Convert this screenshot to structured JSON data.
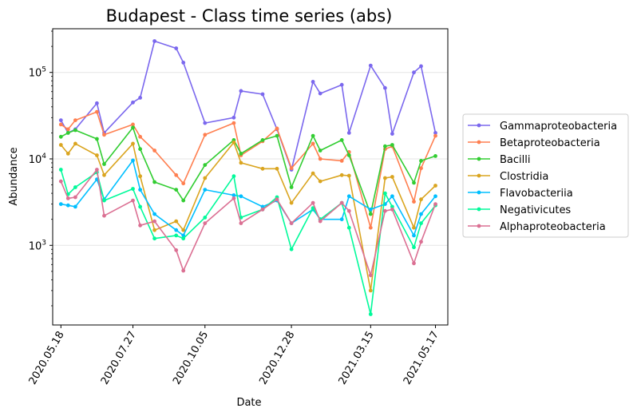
{
  "chart_data": {
    "type": "line",
    "title": "Budapest - Class time series (abs)",
    "xlabel": "Date",
    "ylabel": "Abundance",
    "y_scale": "log",
    "ylim": [
      120,
      320000
    ],
    "xlim": [
      "2020-05-10",
      "2021-05-29"
    ],
    "grid": "horizontal",
    "legend_position": "right",
    "x_ticks": [
      "2020.05.18",
      "2020.07.27",
      "2020.10.05",
      "2020.12.28",
      "2021.03.15",
      "2021.05.17"
    ],
    "y_ticks": [
      {
        "value": 1000,
        "base": "10",
        "exp": "3"
      },
      {
        "value": 10000,
        "base": "10",
        "exp": "4"
      },
      {
        "value": 100000,
        "base": "10",
        "exp": "5"
      }
    ],
    "x": [
      "2020-05-18",
      "2020-05-25",
      "2020-06-01",
      "2020-06-22",
      "2020-06-29",
      "2020-07-27",
      "2020-08-03",
      "2020-08-17",
      "2020-09-07",
      "2020-09-14",
      "2020-10-05",
      "2020-11-02",
      "2020-11-09",
      "2020-11-30",
      "2020-12-14",
      "2020-12-28",
      "2021-01-18",
      "2021-01-25",
      "2021-02-15",
      "2021-02-22",
      "2021-03-15",
      "2021-03-29",
      "2021-04-05",
      "2021-04-26",
      "2021-05-03",
      "2021-05-17"
    ],
    "series": [
      {
        "name": "Gammaproteobacteria",
        "color": "#7b68ee",
        "values": [
          28000,
          20000,
          22000,
          44000,
          20000,
          45000,
          51000,
          230000,
          190000,
          130000,
          26000,
          30000,
          61000,
          56000,
          22000,
          7500,
          78000,
          57000,
          72000,
          20000,
          120000,
          66000,
          19500,
          100000,
          118000,
          20000
        ]
      },
      {
        "name": "Betaproteobacteria",
        "color": "#ff7f50",
        "values": [
          25000,
          22000,
          28000,
          35000,
          19000,
          25000,
          18000,
          12500,
          6500,
          5200,
          19000,
          26000,
          11000,
          16000,
          22500,
          7800,
          15000,
          10000,
          9500,
          12000,
          1600,
          13000,
          14000,
          3200,
          7800,
          18500
        ]
      },
      {
        "name": "Bacilli",
        "color": "#32cd32",
        "values": [
          18000,
          20000,
          21500,
          17000,
          8700,
          23000,
          13000,
          5400,
          4400,
          3300,
          8500,
          16500,
          11500,
          16500,
          18500,
          4700,
          18500,
          12500,
          16500,
          11000,
          2300,
          14000,
          14500,
          5300,
          9500,
          10800
        ]
      },
      {
        "name": "Clostridia",
        "color": "#daa520",
        "values": [
          14500,
          11500,
          15000,
          11000,
          6500,
          15000,
          6300,
          1500,
          1900,
          1500,
          6000,
          15500,
          9000,
          7700,
          7700,
          3100,
          6800,
          5500,
          6500,
          6400,
          300,
          6000,
          6200,
          1600,
          3400,
          4900
        ]
      },
      {
        "name": "Flavobacteriia",
        "color": "#00bfff",
        "values": [
          3000,
          2900,
          2800,
          5800,
          3400,
          9600,
          4400,
          2300,
          1500,
          1300,
          4400,
          3800,
          3700,
          2800,
          3300,
          1800,
          2600,
          2000,
          2000,
          3700,
          2600,
          3000,
          3700,
          1300,
          2300,
          3700
        ]
      },
      {
        "name": "Negativicutes",
        "color": "#00fa9a",
        "values": [
          7500,
          3900,
          4700,
          7000,
          3300,
          4500,
          2800,
          1200,
          1300,
          1200,
          2100,
          6300,
          2100,
          2600,
          3600,
          900,
          2700,
          2000,
          3100,
          1600,
          160,
          4000,
          2800,
          950,
          1800,
          2900
        ]
      },
      {
        "name": "Alphaproteobacteria",
        "color": "#db7093",
        "values": [
          5500,
          3500,
          3600,
          7500,
          2200,
          3300,
          1700,
          1900,
          880,
          510,
          1800,
          3500,
          1800,
          2600,
          3400,
          1800,
          3100,
          1900,
          3100,
          2500,
          450,
          2500,
          2600,
          620,
          1100,
          3000
        ]
      }
    ]
  }
}
